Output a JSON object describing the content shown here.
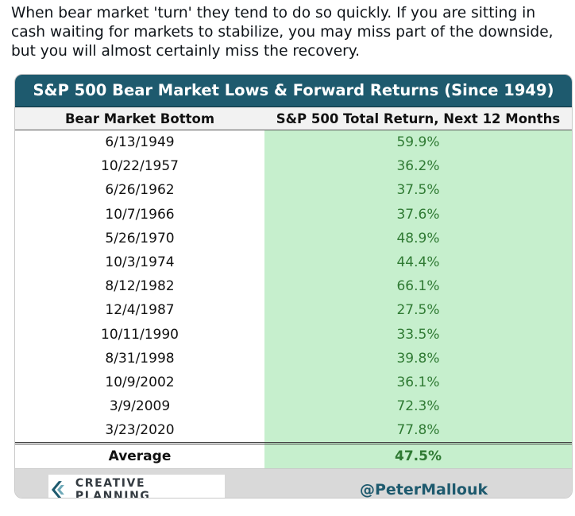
{
  "post": {
    "text": "When bear market 'turn' they tend to do so quickly. If  you are sitting in\ncash waiting for markets to stabilize, you may miss part of the downside,\nbut you will almost certainly miss the recovery."
  },
  "card": {
    "title": "S&P 500 Bear Market Lows & Forward Returns (Since 1949)",
    "footer_logo_text": "CREATIVE PLANNING",
    "footer_handle": "@PeterMallouk"
  },
  "colors": {
    "title_bg": "#1e5a6e",
    "return_bg": "#c6efcd",
    "return_text": "#2f7a33",
    "footer_bg": "#d9d9d9"
  },
  "chart_data": {
    "type": "table",
    "title": "S&P 500 Bear Market Lows & Forward Returns (Since 1949)",
    "columns": [
      "Bear Market Bottom",
      "S&P 500 Total Return, Next 12 Months"
    ],
    "rows": [
      [
        "6/13/1949",
        "59.9%"
      ],
      [
        "10/22/1957",
        "36.2%"
      ],
      [
        "6/26/1962",
        "37.5%"
      ],
      [
        "10/7/1966",
        "37.6%"
      ],
      [
        "5/26/1970",
        "48.9%"
      ],
      [
        "10/3/1974",
        "44.4%"
      ],
      [
        "8/12/1982",
        "66.1%"
      ],
      [
        "12/4/1987",
        "27.5%"
      ],
      [
        "10/11/1990",
        "33.5%"
      ],
      [
        "8/31/1998",
        "39.8%"
      ],
      [
        "10/9/2002",
        "36.1%"
      ],
      [
        "3/9/2009",
        "72.3%"
      ],
      [
        "3/23/2020",
        "77.8%"
      ]
    ],
    "summary": [
      "Average",
      "47.5%"
    ]
  }
}
